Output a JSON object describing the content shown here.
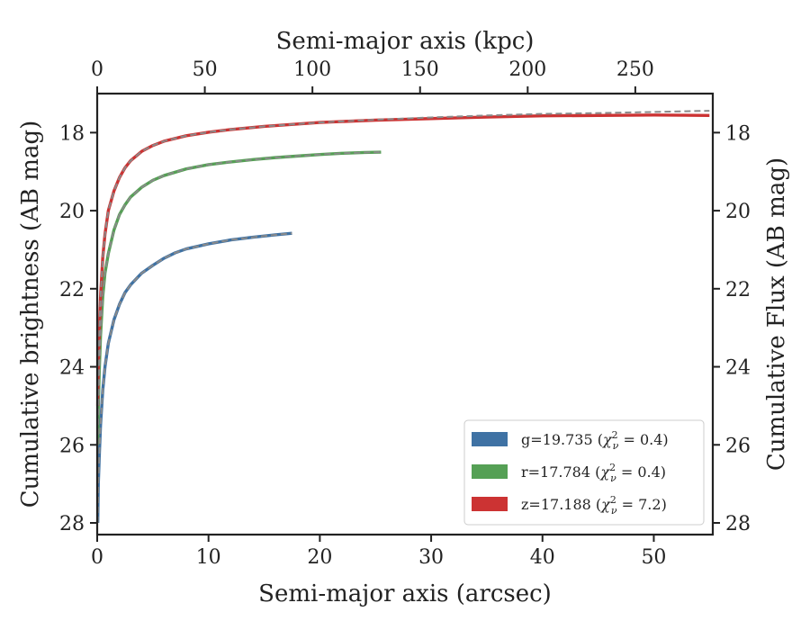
{
  "chart_data": {
    "type": "line",
    "xlabel": "Semi-major axis (arcsec)",
    "ylabel": "Cumulative brightness (AB mag)",
    "x2label": "Semi-major axis (kpc)",
    "y2label": "Cumulative Flux (AB mag)",
    "xlim": [
      0,
      55.3
    ],
    "ylim": [
      28.3,
      17.0
    ],
    "x2lim": [
      0,
      286
    ],
    "y_inverted": true,
    "xticks": [
      0,
      10,
      20,
      30,
      40,
      50
    ],
    "yticks": [
      18,
      20,
      22,
      24,
      26,
      28
    ],
    "x2ticks": [
      0,
      50,
      100,
      150,
      200,
      250
    ],
    "grid": false,
    "legend_position": "lower-right",
    "series": [
      {
        "name": "g=19.735 ($\\chi^2_\\nu=0.4$)",
        "label_main": "g=19.735 (",
        "label_chi": "χ",
        "label_eq": " = 0.4)",
        "color": "#3f72a4",
        "x": [
          0.05,
          0.1,
          0.2,
          0.3,
          0.5,
          0.7,
          1.0,
          1.5,
          2.0,
          2.5,
          3.0,
          4.0,
          5.0,
          6.0,
          7.0,
          8.0,
          10.0,
          12.0,
          14.0,
          16.0,
          17.5
        ],
        "y": [
          28.0,
          27.0,
          26.2,
          25.5,
          24.6,
          24.0,
          23.4,
          22.8,
          22.4,
          22.1,
          21.9,
          21.6,
          21.4,
          21.22,
          21.08,
          20.98,
          20.85,
          20.75,
          20.68,
          20.62,
          20.58
        ]
      },
      {
        "name": "r=17.784 ($\\chi^2_\\nu=0.4$)",
        "label_main": "r=17.784 (",
        "label_chi": "χ",
        "label_eq": " = 0.4)",
        "color": "#55a055",
        "x": [
          0.05,
          0.1,
          0.2,
          0.3,
          0.5,
          0.7,
          1.0,
          1.5,
          2.0,
          2.5,
          3.0,
          4.0,
          5.0,
          6.0,
          8.0,
          10.0,
          12.0,
          14.0,
          16.0,
          18.0,
          20.0,
          22.0,
          24.0,
          25.5
        ],
        "y": [
          26.0,
          25.0,
          24.0,
          23.2,
          22.2,
          21.6,
          21.1,
          20.5,
          20.1,
          19.85,
          19.65,
          19.4,
          19.22,
          19.1,
          18.93,
          18.82,
          18.75,
          18.69,
          18.64,
          18.6,
          18.56,
          18.53,
          18.51,
          18.5
        ]
      },
      {
        "name": "z=17.188 ($\\chi^2_\\nu=7.2$)",
        "label_main": "z=17.188 (",
        "label_chi": "χ",
        "label_eq": " = 7.2)",
        "color": "#cc3333",
        "x": [
          0.05,
          0.1,
          0.2,
          0.3,
          0.5,
          0.7,
          1.0,
          1.5,
          2.0,
          2.5,
          3.0,
          4.0,
          5.0,
          6.0,
          8.0,
          10.0,
          12.0,
          15.0,
          20.0,
          25.0,
          30.0,
          35.0,
          40.0,
          45.0,
          50.0,
          55.0
        ],
        "y": [
          25.0,
          24.0,
          23.0,
          22.2,
          21.2,
          20.6,
          20.0,
          19.5,
          19.15,
          18.9,
          18.72,
          18.48,
          18.33,
          18.22,
          18.08,
          17.99,
          17.92,
          17.84,
          17.74,
          17.68,
          17.64,
          17.6,
          17.57,
          17.56,
          17.55,
          17.56
        ]
      }
    ],
    "model_curves": [
      {
        "style": "dashed",
        "color": "#8a8a8a",
        "x": [
          0.05,
          0.1,
          0.2,
          0.3,
          0.5,
          0.7,
          1.0,
          1.5,
          2.0,
          2.5,
          3.0,
          4.0,
          5.0,
          6.0,
          7.0,
          8.0,
          10.0,
          12.0,
          14.0,
          16.0,
          17.5
        ],
        "y": [
          28.0,
          27.0,
          26.2,
          25.5,
          24.6,
          24.0,
          23.4,
          22.8,
          22.4,
          22.1,
          21.9,
          21.6,
          21.4,
          21.22,
          21.08,
          20.98,
          20.85,
          20.75,
          20.68,
          20.62,
          20.58
        ]
      },
      {
        "style": "dashed",
        "color": "#8a8a8a",
        "x": [
          0.05,
          0.1,
          0.2,
          0.3,
          0.5,
          0.7,
          1.0,
          1.5,
          2.0,
          2.5,
          3.0,
          4.0,
          5.0,
          6.0,
          8.0,
          10.0,
          12.0,
          14.0,
          16.0,
          18.0,
          20.0,
          22.0,
          24.0,
          25.5
        ],
        "y": [
          26.0,
          25.0,
          24.0,
          23.2,
          22.2,
          21.6,
          21.1,
          20.5,
          20.1,
          19.85,
          19.65,
          19.4,
          19.22,
          19.1,
          18.93,
          18.82,
          18.75,
          18.69,
          18.64,
          18.6,
          18.56,
          18.53,
          18.51,
          18.5
        ]
      },
      {
        "style": "dashed",
        "color": "#8a8a8a",
        "x": [
          0.05,
          0.1,
          0.2,
          0.3,
          0.5,
          0.7,
          1.0,
          1.5,
          2.0,
          2.5,
          3.0,
          4.0,
          5.0,
          6.0,
          8.0,
          10.0,
          12.0,
          15.0,
          20.0,
          25.0,
          30.0,
          35.0,
          40.0,
          45.0,
          50.0,
          55.0
        ],
        "y": [
          25.0,
          24.0,
          23.0,
          22.2,
          21.2,
          20.6,
          20.0,
          19.5,
          19.15,
          18.9,
          18.72,
          18.48,
          18.33,
          18.22,
          18.08,
          17.99,
          17.92,
          17.84,
          17.74,
          17.67,
          17.61,
          17.56,
          17.52,
          17.5,
          17.47,
          17.44
        ]
      }
    ]
  }
}
